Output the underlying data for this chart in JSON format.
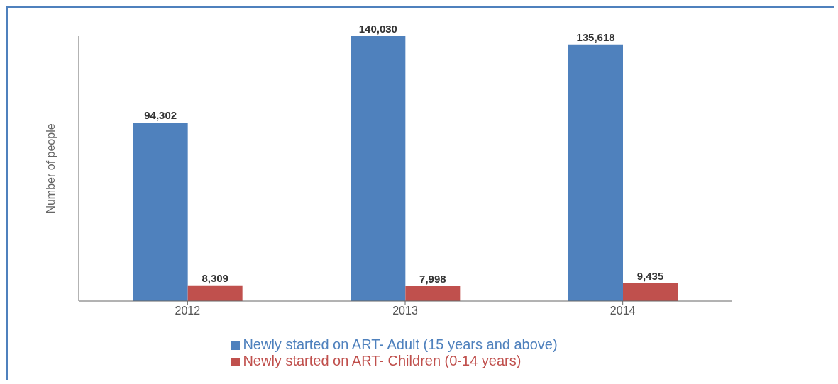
{
  "chart_data": {
    "type": "bar",
    "ylabel": "Number of people",
    "categories": [
      "2012",
      "2013",
      "2014"
    ],
    "series": [
      {
        "name": "Newly started on ART- Adult (15 years and above)",
        "color": "#4f81bd",
        "values": [
          94302,
          140030,
          135618
        ],
        "value_labels": [
          "94,302",
          "140,030",
          "135,618"
        ]
      },
      {
        "name": "Newly started on ART- Children (0-14 years)",
        "color": "#c0504d",
        "values": [
          8309,
          7998,
          9435
        ],
        "value_labels": [
          "8,309",
          "7,998",
          "9,435"
        ]
      }
    ],
    "legend": "bottom",
    "grid": false
  }
}
